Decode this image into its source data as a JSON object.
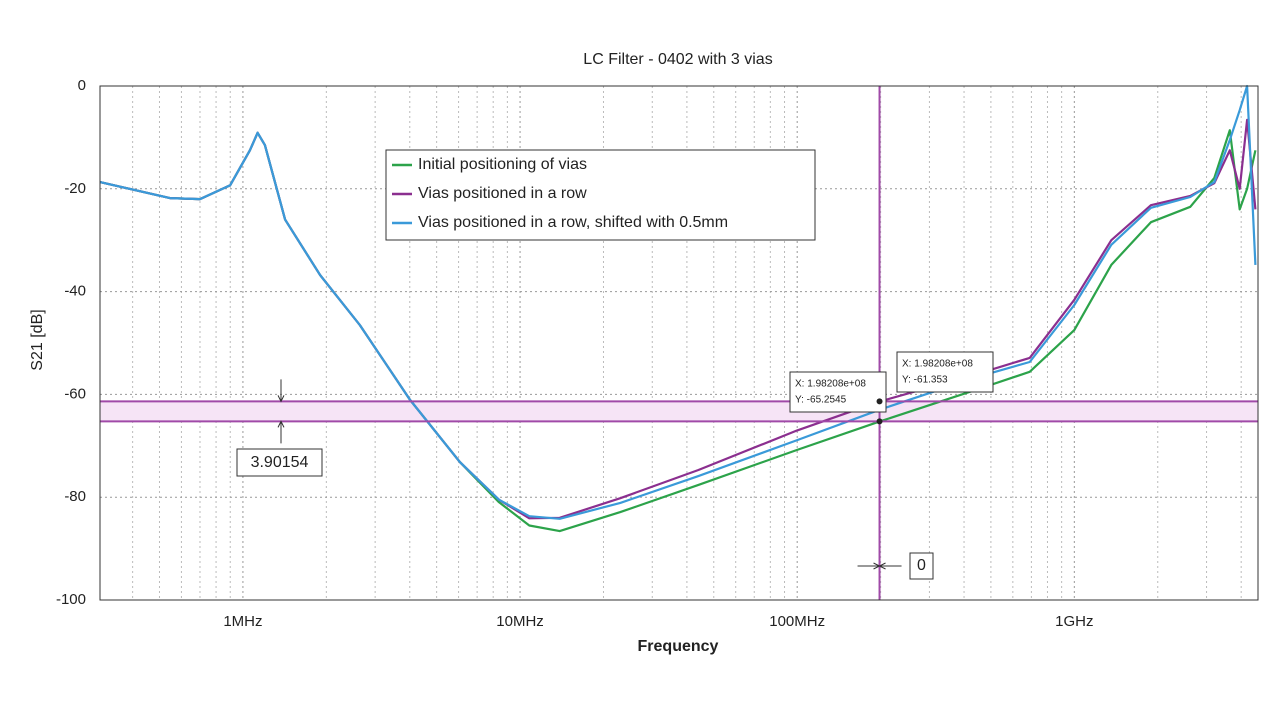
{
  "chart_data": {
    "type": "line",
    "title": "LC Filter - 0402 with 3 vias",
    "x_label": "Frequency",
    "y_label": "S21 [dB]",
    "log_x": true,
    "grid": true,
    "legend": "upper center",
    "xlim": [
      305000,
      4600000000
    ],
    "ylim": [
      -100,
      0
    ],
    "xticks": [
      {
        "value": 1000000,
        "label": "1MHz"
      },
      {
        "value": 10000000,
        "label": "10MHz"
      },
      {
        "value": 100000000,
        "label": "100MHz"
      },
      {
        "value": 1000000000,
        "label": "1GHz"
      }
    ],
    "xticks_minor": [
      400000,
      500000,
      600000,
      700000,
      800000,
      900000,
      2000000,
      3000000,
      4000000,
      5000000,
      6000000,
      7000000,
      8000000,
      9000000,
      20000000,
      30000000,
      40000000,
      50000000,
      60000000,
      70000000,
      80000000,
      90000000,
      200000000,
      300000000,
      400000000,
      500000000,
      600000000,
      700000000,
      800000000,
      900000000,
      2000000000,
      3000000000,
      4000000000
    ],
    "yticks": [
      0,
      -20,
      -40,
      -60,
      -80,
      -100
    ],
    "x": [
      305000,
      545000,
      700000,
      900000,
      1060000,
      1130000,
      1200000,
      1420000,
      1900000,
      2640000,
      4000000,
      6070000,
      8400000,
      10800000,
      13900000,
      23000000,
      44000000,
      100000000,
      198000000,
      460000000,
      690000000,
      1000000000,
      1360000000,
      1890000000,
      2620000000,
      3200000000,
      3640000000,
      3950000000,
      4200000000,
      4500000000
    ],
    "series": [
      {
        "name": "Initial positioning of vias",
        "color": "#2ca34a",
        "values": [
          -18.7,
          -21.8,
          -22.0,
          -19.3,
          -12.5,
          -9.1,
          -11.5,
          -26,
          -36.8,
          -46.5,
          -61,
          -73.2,
          -81,
          -85.5,
          -86.6,
          -82.9,
          -77.6,
          -70.8,
          -65.3,
          -58.8,
          -55.6,
          -47.5,
          -34.8,
          -26.5,
          -23.5,
          -17.9,
          -8.6,
          -24,
          -20,
          -12.5
        ]
      },
      {
        "name": "Vias positioned in a row",
        "color": "#8b2f8f",
        "values": [
          -18.7,
          -21.8,
          -22.0,
          -19.3,
          -12.5,
          -9.1,
          -11.5,
          -26,
          -36.8,
          -46.5,
          -61,
          -73.2,
          -80.5,
          -84.1,
          -84,
          -80.2,
          -74.7,
          -67,
          -61.4,
          -55.8,
          -52.9,
          -41.6,
          -30,
          -23.2,
          -21.4,
          -18.9,
          -12.5,
          -20,
          -6.6,
          -24
        ]
      },
      {
        "name": "Vias positioned in a row, shifted with 0.5mm",
        "color": "#3a9ad9",
        "values": [
          -18.7,
          -21.8,
          -22.0,
          -19.3,
          -12.5,
          -9.1,
          -11.5,
          -26,
          -36.8,
          -46.5,
          -61,
          -73.2,
          -80.5,
          -83.7,
          -84.2,
          -81.1,
          -75.9,
          -68.9,
          -63,
          -56.4,
          -53.7,
          -42.6,
          -30.9,
          -23.7,
          -21.6,
          -18.7,
          -10.5,
          -4.7,
          0,
          -34.8
        ]
      }
    ],
    "cursors": {
      "color": "#a04aa8",
      "y": [
        -61.353,
        -65.2545
      ],
      "x": 198208000,
      "delta_y_label": "3.90154",
      "delta_x_label": "0",
      "tips": [
        {
          "x_label": "X: 1.98208e+08",
          "y_label": "Y: -65.2545"
        },
        {
          "x_label": "X: 1.98208e+08",
          "y_label": "Y: -61.353"
        }
      ]
    }
  }
}
